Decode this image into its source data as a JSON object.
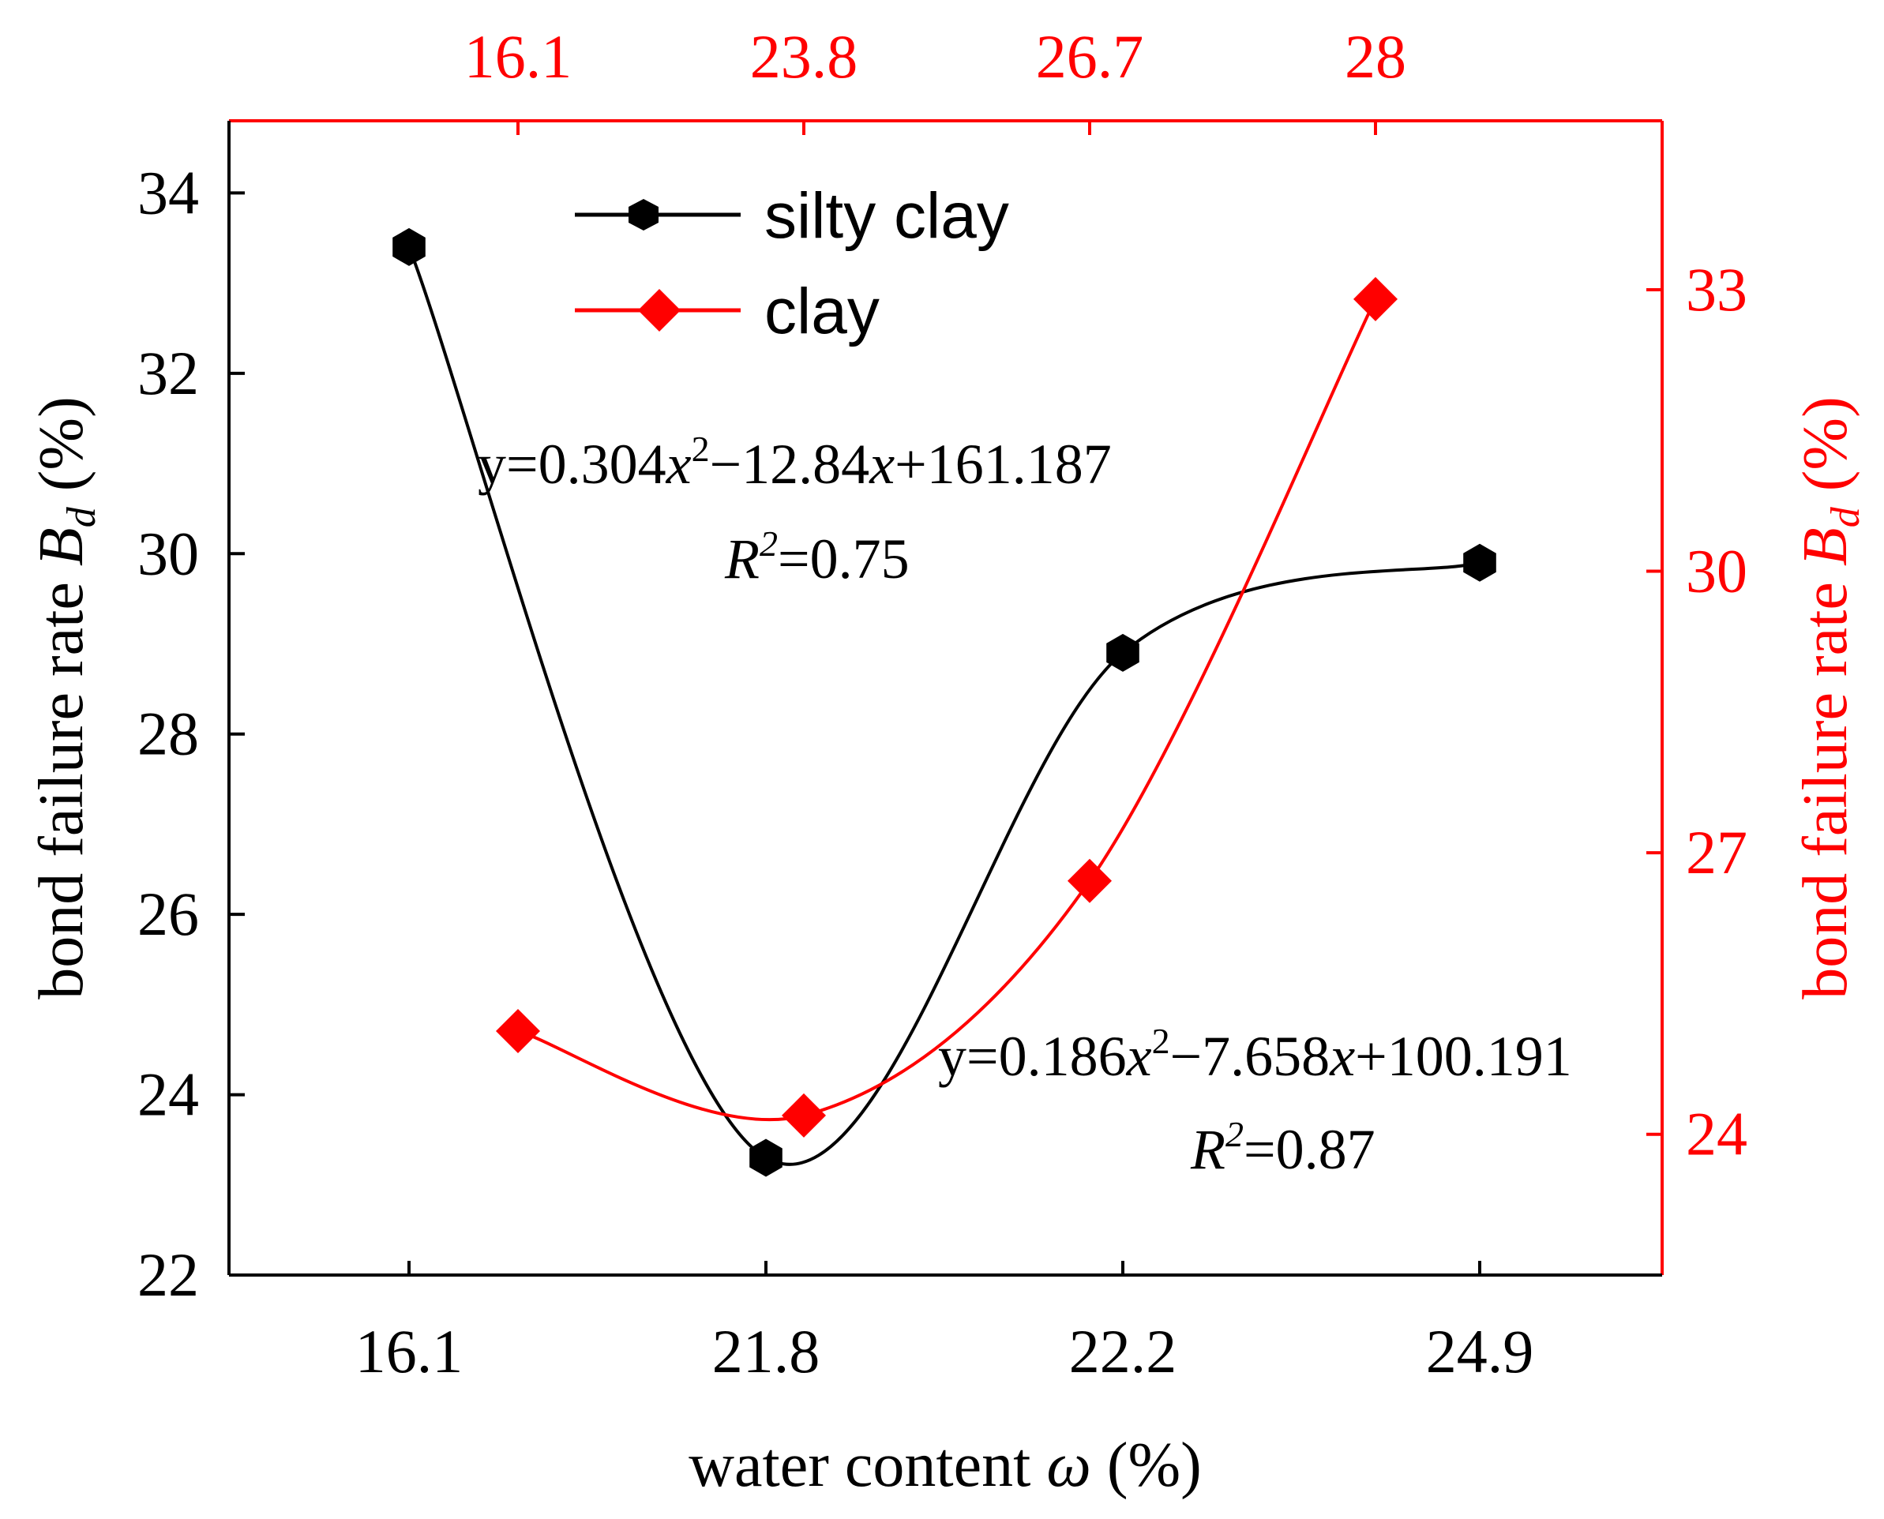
{
  "chart_data": {
    "type": "line",
    "colors": {
      "primary": "#000000",
      "secondary": "#ff0000"
    },
    "x_bottom": {
      "title_prefix": "water content ",
      "title_symbol": "ω",
      "title_suffix": " (%)",
      "categories": [
        "16.1",
        "21.8",
        "22.2",
        "24.9"
      ]
    },
    "x_top": {
      "categories": [
        "16.1",
        "23.8",
        "26.7",
        "28"
      ]
    },
    "y_left": {
      "title_prefix": "bond failure rate ",
      "title_symbol": "B",
      "title_sub": "d",
      "title_suffix": " (%)",
      "range": [
        22,
        34.8
      ],
      "ticks": [
        "22",
        "24",
        "26",
        "28",
        "30",
        "32",
        "34"
      ]
    },
    "y_right": {
      "title_prefix": "bond failure rate ",
      "title_symbol": "B",
      "title_sub": "d",
      "title_suffix": " (%)",
      "range": [
        22.5,
        34.8
      ],
      "ticks": [
        "24",
        "27",
        "30",
        "33"
      ]
    },
    "series": [
      {
        "name": "silty clay",
        "axis": "primary",
        "marker": "hexagon",
        "values": [
          33.4,
          23.3,
          28.9,
          29.9
        ],
        "fit": {
          "equation_lead": "y=0.304",
          "equation_mid1": "x",
          "equation_pow": "2",
          "equation_mid2": "−12.84",
          "equation_mid3": "x",
          "equation_tail": "+161.187",
          "r2_symbol": "R",
          "r2_pow": "2",
          "r2_value": "=0.75"
        }
      },
      {
        "name": "clay",
        "axis": "secondary",
        "marker": "diamond",
        "values": [
          25.1,
          24.2,
          26.7,
          32.9
        ],
        "fit": {
          "equation_lead": "y=0.186",
          "equation_mid1": "x",
          "equation_pow": "2",
          "equation_mid2": "−7.658",
          "equation_mid3": "x",
          "equation_tail": "+100.191",
          "r2_symbol": "R",
          "r2_pow": "2",
          "r2_value": "=0.87"
        }
      }
    ]
  }
}
